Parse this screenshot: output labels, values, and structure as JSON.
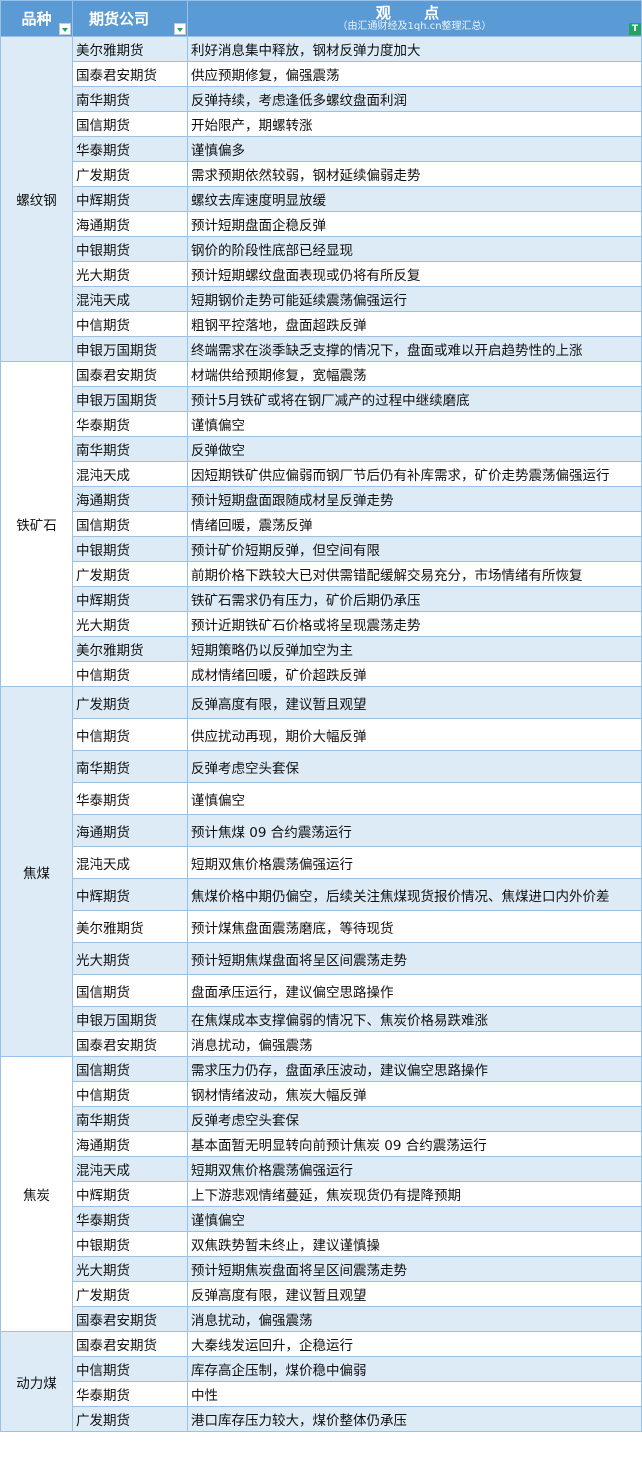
{
  "header": {
    "col_category": "品种",
    "col_company": "期货公司",
    "col_view": "观    点",
    "col_view_sub": "（由汇通财经及1qh.cn整理汇总）"
  },
  "groups": [
    {
      "category": "螺纹钢",
      "rows": [
        {
          "company": "美尔雅期货",
          "view": "利好消息集中释放，钢材反弹力度加大"
        },
        {
          "company": "国泰君安期货",
          "view": "供应预期修复，偏强震荡"
        },
        {
          "company": "南华期货",
          "view": "反弹持续，考虑逢低多螺纹盘面利润"
        },
        {
          "company": "国信期货",
          "view": "开始限产，期螺转涨"
        },
        {
          "company": "华泰期货",
          "view": "谨慎偏多"
        },
        {
          "company": "广发期货",
          "view": "需求预期依然较弱，钢材延续偏弱走势"
        },
        {
          "company": "中辉期货",
          "view": "螺纹去库速度明显放缓"
        },
        {
          "company": "海通期货",
          "view": "预计短期盘面企稳反弹"
        },
        {
          "company": "中银期货",
          "view": "钢价的阶段性底部已经显现"
        },
        {
          "company": "光大期货",
          "view": "预计短期螺纹盘面表现或仍将有所反复"
        },
        {
          "company": "混沌天成",
          "view": "短期钢价走势可能延续震荡偏强运行"
        },
        {
          "company": "中信期货",
          "view": "粗钢平控落地，盘面超跌反弹"
        },
        {
          "company": "申银万国期货",
          "view": "终端需求在淡季缺乏支撑的情况下，盘面或难以开启趋势性的上涨"
        }
      ]
    },
    {
      "category": "铁矿石",
      "rows": [
        {
          "company": "国泰君安期货",
          "view": "材端供给预期修复，宽幅震荡"
        },
        {
          "company": "申银万国期货",
          "view": "预计5月铁矿或将在钢厂减产的过程中继续磨底"
        },
        {
          "company": "华泰期货",
          "view": "谨慎偏空"
        },
        {
          "company": "南华期货",
          "view": "反弹做空"
        },
        {
          "company": "混沌天成",
          "view": "因短期铁矿供应偏弱而钢厂节后仍有补库需求，矿价走势震荡偏强运行"
        },
        {
          "company": "海通期货",
          "view": "预计短期盘面跟随成材呈反弹走势"
        },
        {
          "company": "国信期货",
          "view": "情绪回暖，震荡反弹"
        },
        {
          "company": "中银期货",
          "view": "预计矿价短期反弹，但空间有限"
        },
        {
          "company": "广发期货",
          "view": "前期价格下跌较大已对供需错配缓解交易充分，市场情绪有所恢复"
        },
        {
          "company": "中辉期货",
          "view": "铁矿石需求仍有压力，矿价后期仍承压"
        },
        {
          "company": "光大期货",
          "view": "预计近期铁矿石价格或将呈现震荡走势"
        },
        {
          "company": "美尔雅期货",
          "view": "短期策略仍以反弹加空为主"
        },
        {
          "company": "中信期货",
          "view": "成材情绪回暖，矿价超跌反弹"
        }
      ]
    },
    {
      "category": "焦煤",
      "rows": [
        {
          "company": "广发期货",
          "view": "反弹高度有限，建议暂且观望"
        },
        {
          "company": "中信期货",
          "view": "供应扰动再现，期价大幅反弹"
        },
        {
          "company": "南华期货",
          "view": "反弹考虑空头套保"
        },
        {
          "company": "华泰期货",
          "view": "谨慎偏空"
        },
        {
          "company": "海通期货",
          "view": "预计焦煤 09 合约震荡运行"
        },
        {
          "company": "混沌天成",
          "view": "短期双焦价格震荡偏强运行"
        },
        {
          "company": "中辉期货",
          "view": "焦煤价格中期仍偏空，后续关注焦煤现货报价情况、焦煤进口内外价差"
        },
        {
          "company": "美尔雅期货",
          "view": "预计煤焦盘面震荡磨底，等待现货"
        },
        {
          "company": "光大期货",
          "view": "预计短期焦煤盘面将呈区间震荡走势"
        },
        {
          "company": "国信期货",
          "view": "盘面承压运行，建议偏空思路操作"
        },
        {
          "company": "申银万国期货",
          "view": "在焦煤成本支撑偏弱的情况下、焦炭价格易跌难涨"
        },
        {
          "company": "国泰君安期货",
          "view": "消息扰动，偏强震荡"
        }
      ]
    },
    {
      "category": "焦炭",
      "rows": [
        {
          "company": "国信期货",
          "view": "需求压力仍存，盘面承压波动，建议偏空思路操作"
        },
        {
          "company": "中信期货",
          "view": "钢材情绪波动，焦炭大幅反弹"
        },
        {
          "company": "南华期货",
          "view": "反弹考虑空头套保"
        },
        {
          "company": "海通期货",
          "view": "基本面暂无明显转向前预计焦炭 09 合约震荡运行"
        },
        {
          "company": "混沌天成",
          "view": "短期双焦价格震荡偏强运行"
        },
        {
          "company": "中辉期货",
          "view": "上下游悲观情绪蔓延，焦炭现货仍有提降预期"
        },
        {
          "company": "华泰期货",
          "view": "谨慎偏空"
        },
        {
          "company": "中银期货",
          "view": "双焦跌势暂未终止，建议谨慎操"
        },
        {
          "company": "光大期货",
          "view": "预计短期焦炭盘面将呈区间震荡走势"
        },
        {
          "company": "广发期货",
          "view": "反弹高度有限，建议暂且观望"
        },
        {
          "company": "国泰君安期货",
          "view": "消息扰动，偏强震荡"
        }
      ]
    },
    {
      "category": "动力煤",
      "rows": [
        {
          "company": "国泰君安期货",
          "view": "大秦线发运回升，企稳运行"
        },
        {
          "company": "中信期货",
          "view": "库存高企压制，煤价稳中偏弱"
        },
        {
          "company": "华泰期货",
          "view": "中性"
        },
        {
          "company": "广发期货",
          "view": "港口库存压力较大，煤价整体仍承压"
        }
      ]
    }
  ],
  "colors": {
    "header": "#5b9bd5",
    "band": "#ddebf7",
    "border": "#9bc2e6",
    "filter_active": "#21a366"
  }
}
